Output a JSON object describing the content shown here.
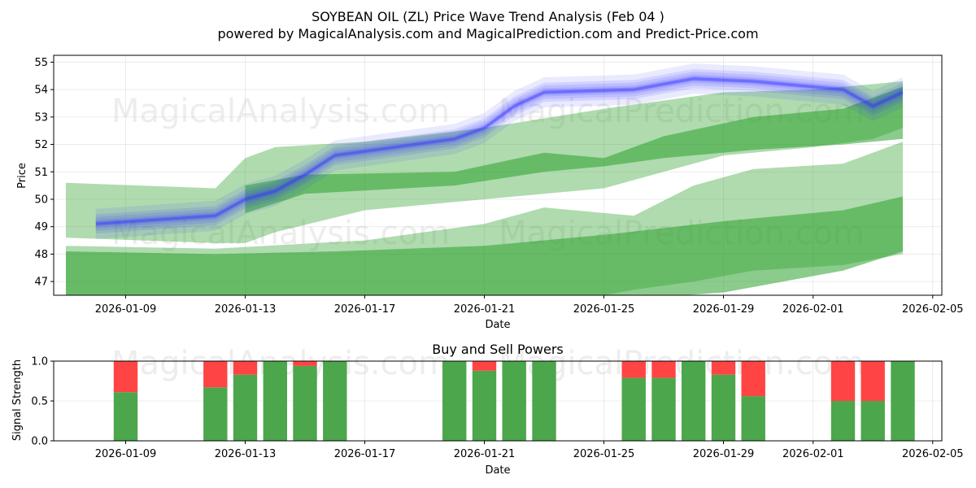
{
  "title": "SOYBEAN OIL (ZL) Price Wave Trend Analysis (Feb 04 )",
  "subtitle": "powered by MagicalAnalysis.com and MagicalPrediction.com and Predict-Price.com",
  "watermarks": [
    "MagicalAnalysis.com",
    "MagicalPrediction.com"
  ],
  "colors": {
    "green": "#2ca02c",
    "blue": "#3333ff",
    "red": "#ff4444",
    "bar_green": "#4ca64c"
  },
  "chart_data": [
    {
      "type": "area",
      "title": "",
      "xlabel": "Date",
      "ylabel": "Price",
      "ylim": [
        46.5,
        55.25
      ],
      "x_tick_labels": [
        "2026-01-09",
        "2026-01-13",
        "2026-01-17",
        "2026-01-21",
        "2026-01-25",
        "2026-01-29",
        "2026-02-01",
        "2026-02-05"
      ],
      "y_tick_labels": [
        "47",
        "48",
        "49",
        "50",
        "51",
        "52",
        "53",
        "54",
        "55"
      ],
      "grid": true,
      "series": [
        {
          "name": "green band upper",
          "x": [
            "2026-01-07",
            "2026-01-12",
            "2026-01-13",
            "2026-01-14",
            "2026-01-17",
            "2026-01-21",
            "2026-01-25",
            "2026-01-27",
            "2026-01-29",
            "2026-02-01",
            "2026-02-03",
            "2026-02-04"
          ],
          "upper": [
            50.6,
            50.4,
            51.5,
            51.9,
            52.1,
            52.6,
            53.3,
            53.6,
            53.9,
            54.0,
            54.2,
            54.3
          ],
          "lower": [
            48.6,
            48.4,
            48.4,
            48.8,
            49.6,
            50.0,
            50.4,
            51.0,
            51.6,
            51.9,
            52.2,
            52.6
          ]
        },
        {
          "name": "green band middle",
          "x": [
            "2026-01-13",
            "2026-01-15",
            "2026-01-20",
            "2026-01-23",
            "2026-01-25",
            "2026-01-27",
            "2026-01-30",
            "2026-02-02",
            "2026-02-04"
          ],
          "upper": [
            50.5,
            50.9,
            51.0,
            51.7,
            51.5,
            52.3,
            53.0,
            53.3,
            54.1
          ],
          "lower": [
            49.5,
            50.2,
            50.5,
            51.0,
            51.2,
            51.5,
            51.8,
            52.0,
            52.2
          ]
        },
        {
          "name": "green band lower",
          "x": [
            "2026-01-07",
            "2026-01-12",
            "2026-01-17",
            "2026-01-21",
            "2026-01-23",
            "2026-01-25",
            "2026-01-26",
            "2026-01-28",
            "2026-01-30",
            "2026-02-02",
            "2026-02-04"
          ],
          "upper": [
            48.3,
            48.2,
            48.5,
            49.1,
            49.7,
            49.5,
            49.4,
            50.5,
            51.1,
            51.3,
            52.1
          ],
          "lower": [
            46.3,
            46.3,
            46.3,
            46.3,
            46.3,
            46.5,
            46.7,
            47.0,
            47.4,
            47.6,
            48.0
          ]
        },
        {
          "name": "green band bottom",
          "x": [
            "2026-01-07",
            "2026-01-12",
            "2026-01-16",
            "2026-01-21",
            "2026-01-25",
            "2026-01-29",
            "2026-02-02",
            "2026-02-04"
          ],
          "upper": [
            48.1,
            48.0,
            48.1,
            48.3,
            48.7,
            49.2,
            49.6,
            50.1
          ],
          "lower": [
            46.3,
            46.3,
            46.3,
            46.3,
            46.3,
            46.6,
            47.4,
            48.1
          ]
        },
        {
          "name": "blue wave",
          "x": [
            "2026-01-08",
            "2026-01-12",
            "2026-01-13",
            "2026-01-14",
            "2026-01-15",
            "2026-01-16",
            "2026-01-20",
            "2026-01-21",
            "2026-01-22",
            "2026-01-23",
            "2026-01-26",
            "2026-01-28",
            "2026-01-30",
            "2026-02-02",
            "2026-02-03",
            "2026-02-04"
          ],
          "values": [
            49.1,
            49.4,
            50.0,
            50.3,
            50.9,
            51.6,
            52.2,
            52.6,
            53.4,
            53.9,
            54.0,
            54.4,
            54.3,
            54.0,
            53.4,
            53.9
          ]
        }
      ]
    },
    {
      "type": "bar",
      "title": "Buy and Sell Powers",
      "xlabel": "Date",
      "ylabel": "Signal Strength",
      "ylim": [
        0,
        1
      ],
      "y_tick_labels": [
        "0.0",
        "0.5",
        "1.0"
      ],
      "x_tick_labels": [
        "2026-01-09",
        "2026-01-13",
        "2026-01-17",
        "2026-01-21",
        "2026-01-25",
        "2026-01-29",
        "2026-02-01",
        "2026-02-05"
      ],
      "categories": [
        "2026-01-09",
        "2026-01-12",
        "2026-01-13",
        "2026-01-14",
        "2026-01-15",
        "2026-01-16",
        "2026-01-20",
        "2026-01-21",
        "2026-01-22",
        "2026-01-23",
        "2026-01-26",
        "2026-01-27",
        "2026-01-28",
        "2026-01-29",
        "2026-01-30",
        "2026-02-02",
        "2026-02-03",
        "2026-02-04"
      ],
      "series": [
        {
          "name": "Buy",
          "values": [
            0.61,
            0.67,
            0.83,
            1.0,
            0.94,
            1.0,
            1.0,
            0.88,
            1.0,
            1.0,
            0.79,
            0.79,
            1.0,
            0.83,
            0.56,
            0.5,
            0.5,
            1.0
          ]
        },
        {
          "name": "Sell",
          "values": [
            0.39,
            0.33,
            0.17,
            0.0,
            0.06,
            0.0,
            0.0,
            0.12,
            0.0,
            0.0,
            0.21,
            0.21,
            0.0,
            0.17,
            0.44,
            0.5,
            0.5,
            0.0
          ]
        }
      ]
    }
  ]
}
